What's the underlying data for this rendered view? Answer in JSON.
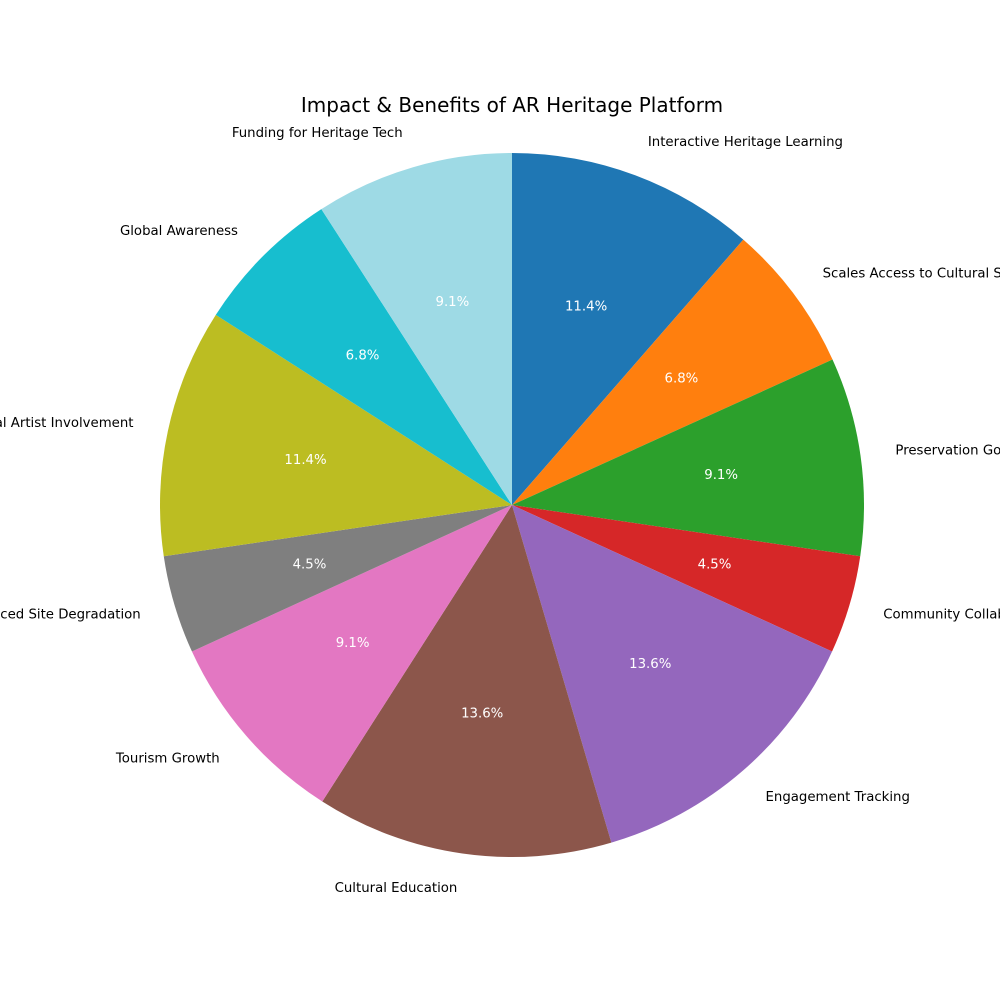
{
  "chart_data": {
    "type": "pie",
    "title": "Impact & Benefits of AR Heritage Platform",
    "start_angle_deg": 90,
    "direction": "clockwise",
    "legend": "none",
    "slices": [
      {
        "label": "Interactive Heritage Learning",
        "value": 11.4,
        "pct_label": "11.4%",
        "color": "#1f77b4"
      },
      {
        "label": "Scales Access to Cultural Sites",
        "value": 6.8,
        "pct_label": "6.8%",
        "color": "#ff7f0e"
      },
      {
        "label": "Preservation Goals",
        "value": 9.1,
        "pct_label": "9.1%",
        "color": "#2ca02c"
      },
      {
        "label": "Community Collaboration",
        "value": 4.5,
        "pct_label": "4.5%",
        "color": "#d62728"
      },
      {
        "label": "Engagement Tracking",
        "value": 13.6,
        "pct_label": "13.6%",
        "color": "#9467bd"
      },
      {
        "label": "Cultural Education",
        "value": 13.6,
        "pct_label": "13.6%",
        "color": "#8c564b"
      },
      {
        "label": "Tourism Growth",
        "value": 9.1,
        "pct_label": "9.1%",
        "color": "#e377c2"
      },
      {
        "label": "Reduced Site Degradation",
        "value": 4.5,
        "pct_label": "4.5%",
        "color": "#7f7f7f"
      },
      {
        "label": "Local Artist Involvement",
        "value": 11.4,
        "pct_label": "11.4%",
        "color": "#bcbd22"
      },
      {
        "label": "Global Awareness",
        "value": 6.8,
        "pct_label": "6.8%",
        "color": "#17becf"
      },
      {
        "label": "Funding for Heritage Tech",
        "value": 9.1,
        "pct_label": "9.1%",
        "color": "#9edae5"
      }
    ]
  }
}
